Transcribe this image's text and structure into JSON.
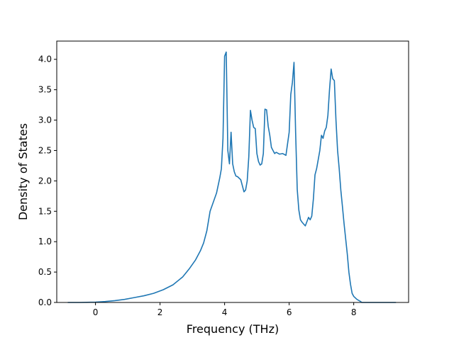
{
  "chart_data": {
    "type": "line",
    "title": "",
    "xlabel": "Frequency (THz)",
    "ylabel": "Density of States",
    "xlim": [
      -1.2,
      9.7
    ],
    "ylim": [
      0.0,
      4.3
    ],
    "xticks": [
      0,
      2,
      4,
      6,
      8
    ],
    "xtick_labels": [
      "0",
      "2",
      "4",
      "6",
      "8"
    ],
    "yticks": [
      0.0,
      0.5,
      1.0,
      1.5,
      2.0,
      2.5,
      3.0,
      3.5,
      4.0
    ],
    "ytick_labels": [
      "0.0",
      "0.5",
      "1.0",
      "1.5",
      "2.0",
      "2.5",
      "3.0",
      "3.5",
      "4.0"
    ],
    "grid": false,
    "line_color": "#1f77b4",
    "series": [
      {
        "x": [
          -0.85,
          -0.5,
          0.0,
          0.3,
          0.6,
          0.9,
          1.2,
          1.5,
          1.8,
          2.1,
          2.4,
          2.7,
          2.9,
          3.1,
          3.25,
          3.35,
          3.45,
          3.55,
          3.65,
          3.75,
          3.85,
          3.9,
          3.95,
          4.0,
          4.05,
          4.1,
          4.15,
          4.2,
          4.25,
          4.3,
          4.35,
          4.4,
          4.5,
          4.6,
          4.65,
          4.7,
          4.75,
          4.8,
          4.85,
          4.9,
          4.95,
          5.0,
          5.05,
          5.1,
          5.15,
          5.2,
          5.25,
          5.3,
          5.35,
          5.4,
          5.45,
          5.5,
          5.55,
          5.6,
          5.7,
          5.8,
          5.9,
          6.0,
          6.05,
          6.1,
          6.15,
          6.2,
          6.25,
          6.3,
          6.35,
          6.4,
          6.5,
          6.6,
          6.65,
          6.7,
          6.75,
          6.8,
          6.85,
          6.9,
          6.95,
          7.0,
          7.05,
          7.1,
          7.15,
          7.2,
          7.25,
          7.3,
          7.35,
          7.4,
          7.45,
          7.5,
          7.55,
          7.6,
          7.65,
          7.7,
          7.75,
          7.8,
          7.85,
          7.9,
          7.95,
          8.0,
          8.1,
          8.2,
          8.25,
          8.3,
          8.35,
          8.4,
          8.45,
          8.5,
          9.0,
          9.3
        ],
        "y": [
          0.0,
          0.0,
          0.005,
          0.015,
          0.03,
          0.05,
          0.08,
          0.11,
          0.15,
          0.21,
          0.29,
          0.42,
          0.55,
          0.7,
          0.85,
          0.98,
          1.18,
          1.5,
          1.65,
          1.8,
          2.05,
          2.2,
          2.7,
          4.05,
          4.12,
          2.5,
          2.28,
          2.8,
          2.28,
          2.15,
          2.08,
          2.07,
          2.02,
          1.82,
          1.85,
          2.0,
          2.4,
          3.16,
          3.0,
          2.88,
          2.86,
          2.45,
          2.32,
          2.26,
          2.28,
          2.45,
          3.18,
          3.17,
          2.9,
          2.75,
          2.55,
          2.5,
          2.45,
          2.47,
          2.44,
          2.45,
          2.42,
          2.8,
          3.42,
          3.62,
          3.95,
          2.8,
          1.86,
          1.52,
          1.36,
          1.32,
          1.26,
          1.4,
          1.36,
          1.42,
          1.7,
          2.1,
          2.2,
          2.35,
          2.5,
          2.75,
          2.7,
          2.82,
          2.88,
          3.08,
          3.5,
          3.84,
          3.68,
          3.65,
          3.0,
          2.5,
          2.2,
          1.85,
          1.58,
          1.3,
          1.05,
          0.8,
          0.5,
          0.3,
          0.15,
          0.1,
          0.05,
          0.02,
          0.0,
          0.0,
          0.0,
          0.0,
          0.0,
          0.0,
          0.0,
          0.0
        ]
      }
    ]
  }
}
